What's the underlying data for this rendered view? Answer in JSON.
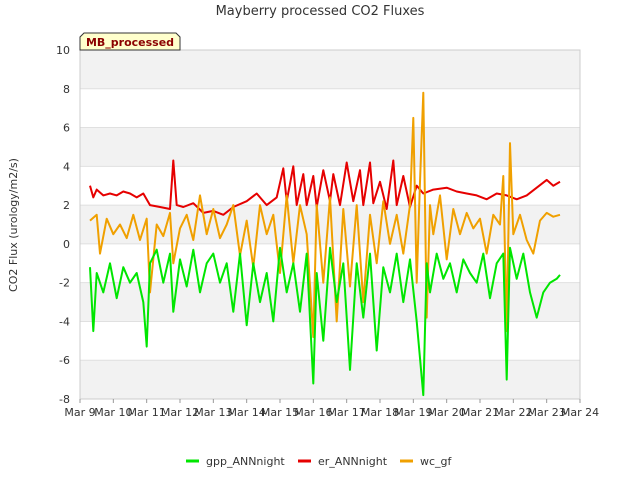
{
  "chart_data": {
    "type": "line",
    "title": "Mayberry processed CO2 Fluxes",
    "ylabel": "CO2 Flux (urology/m2/s)",
    "xlabel": "",
    "badge": "MB_processed",
    "ylim": [
      -8,
      10
    ],
    "yticks": [
      -8,
      -6,
      -4,
      -2,
      0,
      2,
      4,
      6,
      8,
      10
    ],
    "xlim": [
      9,
      24
    ],
    "xticks": [
      9,
      10,
      11,
      12,
      13,
      14,
      15,
      16,
      17,
      18,
      19,
      20,
      21,
      22,
      23,
      24
    ],
    "xtick_labels": [
      "Mar 9",
      "Mar 10",
      "Mar 11",
      "Mar 12",
      "Mar 13",
      "Mar 14",
      "Mar 15",
      "Mar 16",
      "Mar 17",
      "Mar 18",
      "Mar 19",
      "Mar 20",
      "Mar 21",
      "Mar 22",
      "Mar 23",
      "Mar 24"
    ],
    "bands": "alternating light grey bands between even y ticks",
    "series": [
      {
        "name": "er_ANNnight",
        "color": "#e60000",
        "x": [
          9.3,
          9.4,
          9.5,
          9.7,
          9.9,
          10.1,
          10.3,
          10.5,
          10.7,
          10.9,
          11.1,
          11.4,
          11.7,
          11.8,
          11.9,
          12.1,
          12.4,
          12.7,
          13.0,
          13.3,
          13.6,
          14.0,
          14.3,
          14.6,
          14.9,
          15.1,
          15.2,
          15.4,
          15.5,
          15.7,
          15.8,
          16.0,
          16.1,
          16.3,
          16.5,
          16.6,
          16.8,
          17.0,
          17.2,
          17.4,
          17.5,
          17.7,
          17.8,
          18.0,
          18.2,
          18.4,
          18.5,
          18.7,
          18.9,
          19.1,
          19.3,
          19.6,
          20.0,
          20.3,
          20.6,
          20.9,
          21.2,
          21.5,
          21.8,
          22.1,
          22.4,
          22.7,
          23.0,
          23.2,
          23.4
        ],
        "y": [
          3.0,
          2.4,
          2.8,
          2.5,
          2.6,
          2.5,
          2.7,
          2.6,
          2.4,
          2.6,
          2.0,
          1.9,
          1.8,
          4.3,
          2.0,
          1.9,
          2.1,
          1.6,
          1.7,
          1.5,
          1.9,
          2.2,
          2.6,
          2.0,
          2.4,
          3.9,
          2.2,
          4.0,
          2.0,
          3.6,
          2.0,
          3.5,
          1.9,
          3.8,
          2.2,
          3.6,
          2.0,
          4.2,
          2.2,
          3.8,
          2.0,
          4.2,
          2.1,
          3.2,
          1.8,
          4.3,
          2.0,
          3.5,
          1.9,
          3.0,
          2.6,
          2.8,
          2.9,
          2.7,
          2.6,
          2.5,
          2.3,
          2.6,
          2.5,
          2.3,
          2.5,
          2.9,
          3.3,
          3.0,
          3.2
        ]
      },
      {
        "name": "wc_gf",
        "color": "#f0a000",
        "x": [
          9.3,
          9.5,
          9.6,
          9.8,
          10.0,
          10.2,
          10.4,
          10.6,
          10.8,
          11.0,
          11.1,
          11.3,
          11.5,
          11.7,
          11.8,
          12.0,
          12.2,
          12.4,
          12.6,
          12.8,
          13.0,
          13.2,
          13.4,
          13.6,
          13.8,
          14.0,
          14.2,
          14.4,
          14.6,
          14.8,
          15.0,
          15.2,
          15.4,
          15.6,
          15.8,
          16.0,
          16.1,
          16.3,
          16.5,
          16.7,
          16.9,
          17.1,
          17.3,
          17.5,
          17.7,
          17.9,
          18.1,
          18.3,
          18.5,
          18.7,
          18.9,
          19.0,
          19.1,
          19.2,
          19.3,
          19.4,
          19.5,
          19.6,
          19.8,
          20.0,
          20.2,
          20.4,
          20.6,
          20.8,
          21.0,
          21.2,
          21.4,
          21.6,
          21.7,
          21.8,
          21.9,
          22.0,
          22.2,
          22.4,
          22.6,
          22.8,
          23.0,
          23.2,
          23.4
        ],
        "y": [
          1.2,
          1.5,
          -0.5,
          1.3,
          0.5,
          1.0,
          0.3,
          1.5,
          0.2,
          1.3,
          -2.5,
          1.0,
          0.4,
          1.6,
          -1.0,
          0.8,
          1.5,
          0.2,
          2.5,
          0.5,
          1.8,
          0.3,
          1.0,
          2.0,
          -0.6,
          1.2,
          -1.2,
          2.0,
          0.5,
          1.5,
          -1.5,
          2.5,
          -1.0,
          2.0,
          0.5,
          -4.8,
          2.0,
          -2.0,
          2.4,
          -4.0,
          1.8,
          -2.2,
          2.0,
          -3.0,
          1.5,
          -1.0,
          2.2,
          0.0,
          1.5,
          -0.5,
          2.0,
          6.5,
          -2.0,
          3.2,
          7.8,
          -3.8,
          2.0,
          0.5,
          2.5,
          -0.8,
          1.8,
          0.5,
          1.6,
          0.8,
          1.3,
          -0.5,
          1.5,
          1.0,
          3.5,
          -4.5,
          5.2,
          0.5,
          1.5,
          0.2,
          -0.5,
          1.2,
          1.6,
          1.4,
          1.5
        ]
      },
      {
        "name": "gpp_ANNnight",
        "color": "#00e600",
        "x": [
          9.3,
          9.4,
          9.5,
          9.7,
          9.9,
          10.1,
          10.3,
          10.5,
          10.7,
          10.9,
          11.0,
          11.1,
          11.3,
          11.5,
          11.7,
          11.8,
          12.0,
          12.2,
          12.4,
          12.6,
          12.8,
          13.0,
          13.2,
          13.4,
          13.6,
          13.8,
          14.0,
          14.2,
          14.4,
          14.6,
          14.8,
          15.0,
          15.2,
          15.4,
          15.6,
          15.8,
          16.0,
          16.1,
          16.3,
          16.5,
          16.7,
          16.9,
          17.1,
          17.3,
          17.5,
          17.7,
          17.9,
          18.1,
          18.3,
          18.5,
          18.7,
          18.9,
          19.1,
          19.3,
          19.4,
          19.5,
          19.7,
          19.9,
          20.1,
          20.3,
          20.5,
          20.7,
          20.9,
          21.1,
          21.3,
          21.5,
          21.7,
          21.8,
          21.9,
          22.1,
          22.3,
          22.5,
          22.7,
          22.9,
          23.1,
          23.3,
          23.4
        ],
        "y": [
          -1.2,
          -4.5,
          -1.5,
          -2.5,
          -1.0,
          -2.8,
          -1.2,
          -2.0,
          -1.5,
          -3.0,
          -5.3,
          -1.0,
          -0.3,
          -2.0,
          -0.5,
          -3.5,
          -0.8,
          -2.2,
          -0.3,
          -2.5,
          -1.0,
          -0.5,
          -2.0,
          -1.0,
          -3.5,
          -0.5,
          -4.2,
          -1.0,
          -3.0,
          -1.5,
          -4.0,
          -0.2,
          -2.5,
          -1.0,
          -3.5,
          -0.5,
          -7.2,
          -1.5,
          -5.0,
          -0.2,
          -3.0,
          -1.0,
          -6.5,
          -1.0,
          -3.8,
          -0.5,
          -5.5,
          -1.2,
          -2.5,
          -0.5,
          -3.0,
          -0.8,
          -4.0,
          -7.8,
          -1.0,
          -2.5,
          -0.5,
          -1.8,
          -1.0,
          -2.5,
          -0.8,
          -1.5,
          -2.0,
          -0.5,
          -2.8,
          -1.0,
          -0.5,
          -7.0,
          -0.2,
          -1.8,
          -0.5,
          -2.5,
          -3.8,
          -2.5,
          -2.0,
          -1.8,
          -1.6
        ]
      }
    ],
    "legend": [
      "gpp_ANNnight",
      "er_ANNnight",
      "wc_gf"
    ],
    "legend_position": "bottom-center"
  }
}
